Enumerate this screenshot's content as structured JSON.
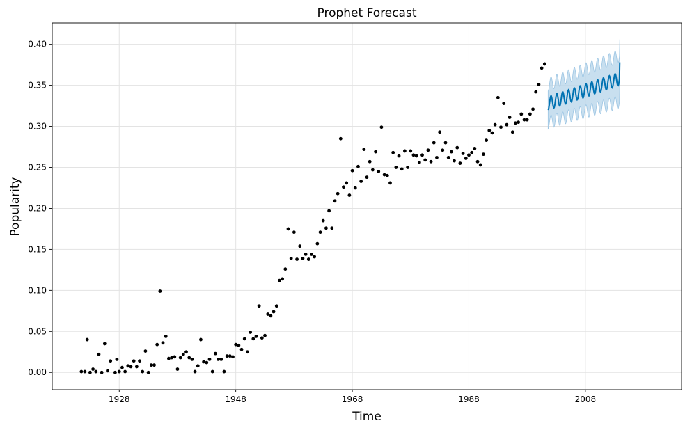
{
  "chart_data": {
    "type": "scatter",
    "title": "Prophet Forecast",
    "xlabel": "Time",
    "ylabel": "Popularity",
    "xlim": [
      1916.5,
      2024.5
    ],
    "ylim": [
      -0.021,
      0.426
    ],
    "x_ticks": [
      1928,
      1948,
      1968,
      1988,
      2008
    ],
    "y_ticks": [
      0.0,
      0.05,
      0.1,
      0.15,
      0.2,
      0.25,
      0.3,
      0.35,
      0.4
    ],
    "y_tick_labels": [
      "0.00",
      "0.05",
      "0.10",
      "0.15",
      "0.20",
      "0.25",
      "0.30",
      "0.35",
      "0.40"
    ],
    "grid": true,
    "colors": {
      "points": "#000000",
      "forecast_line": "#0072B2",
      "uncertainty_band": "#b6d4ea",
      "band_edge": "#9cc5e3"
    },
    "series": [
      {
        "kind": "observed",
        "points": [
          [
            1921.5,
            0.001
          ],
          [
            1922.1,
            0.001
          ],
          [
            1922.5,
            0.04
          ],
          [
            1923.0,
            0.0
          ],
          [
            1923.5,
            0.004
          ],
          [
            1924.0,
            0.001
          ],
          [
            1924.5,
            0.022
          ],
          [
            1925.0,
            0.0
          ],
          [
            1925.5,
            0.035
          ],
          [
            1926.0,
            0.002
          ],
          [
            1926.5,
            0.014
          ],
          [
            1927.3,
            0.0
          ],
          [
            1927.6,
            0.016
          ],
          [
            1928.0,
            0.001
          ],
          [
            1928.5,
            0.006
          ],
          [
            1929.0,
            0.001
          ],
          [
            1929.5,
            0.008
          ],
          [
            1930.0,
            0.007
          ],
          [
            1930.5,
            0.014
          ],
          [
            1931.0,
            0.007
          ],
          [
            1931.5,
            0.014
          ],
          [
            1932.0,
            0.001
          ],
          [
            1932.5,
            0.026
          ],
          [
            1933.0,
            0.0
          ],
          [
            1933.5,
            0.009
          ],
          [
            1934.0,
            0.009
          ],
          [
            1934.5,
            0.034
          ],
          [
            1935.0,
            0.099
          ],
          [
            1935.5,
            0.036
          ],
          [
            1936.0,
            0.044
          ],
          [
            1936.5,
            0.017
          ],
          [
            1937.0,
            0.018
          ],
          [
            1937.5,
            0.019
          ],
          [
            1938.0,
            0.004
          ],
          [
            1938.5,
            0.018
          ],
          [
            1939.0,
            0.022
          ],
          [
            1939.5,
            0.025
          ],
          [
            1940.0,
            0.018
          ],
          [
            1940.5,
            0.016
          ],
          [
            1941.0,
            0.001
          ],
          [
            1941.5,
            0.008
          ],
          [
            1942.0,
            0.04
          ],
          [
            1942.5,
            0.013
          ],
          [
            1943.0,
            0.012
          ],
          [
            1943.5,
            0.016
          ],
          [
            1944.0,
            0.001
          ],
          [
            1944.5,
            0.023
          ],
          [
            1945.0,
            0.016
          ],
          [
            1945.5,
            0.016
          ],
          [
            1946.0,
            0.001
          ],
          [
            1946.5,
            0.02
          ],
          [
            1947.0,
            0.02
          ],
          [
            1947.5,
            0.019
          ],
          [
            1948.0,
            0.034
          ],
          [
            1948.5,
            0.033
          ],
          [
            1949.0,
            0.028
          ],
          [
            1949.5,
            0.041
          ],
          [
            1950.0,
            0.025
          ],
          [
            1950.5,
            0.049
          ],
          [
            1951.0,
            0.041
          ],
          [
            1951.5,
            0.044
          ],
          [
            1952.0,
            0.081
          ],
          [
            1952.5,
            0.042
          ],
          [
            1953.0,
            0.045
          ],
          [
            1953.5,
            0.071
          ],
          [
            1954.0,
            0.069
          ],
          [
            1954.5,
            0.074
          ],
          [
            1955.0,
            0.081
          ],
          [
            1955.5,
            0.112
          ],
          [
            1956.0,
            0.114
          ],
          [
            1956.5,
            0.126
          ],
          [
            1957.0,
            0.175
          ],
          [
            1957.5,
            0.139
          ],
          [
            1958.0,
            0.171
          ],
          [
            1958.5,
            0.138
          ],
          [
            1959.0,
            0.154
          ],
          [
            1959.5,
            0.139
          ],
          [
            1960.0,
            0.144
          ],
          [
            1960.5,
            0.138
          ],
          [
            1961.0,
            0.144
          ],
          [
            1961.5,
            0.141
          ],
          [
            1962.0,
            0.157
          ],
          [
            1962.5,
            0.171
          ],
          [
            1963.0,
            0.185
          ],
          [
            1963.5,
            0.176
          ],
          [
            1964.0,
            0.197
          ],
          [
            1964.5,
            0.176
          ],
          [
            1965.0,
            0.209
          ],
          [
            1965.5,
            0.218
          ],
          [
            1966.0,
            0.285
          ],
          [
            1966.5,
            0.226
          ],
          [
            1967.0,
            0.231
          ],
          [
            1967.5,
            0.216
          ],
          [
            1968.0,
            0.246
          ],
          [
            1968.5,
            0.225
          ],
          [
            1969.0,
            0.251
          ],
          [
            1969.5,
            0.233
          ],
          [
            1970.0,
            0.272
          ],
          [
            1970.5,
            0.238
          ],
          [
            1971.0,
            0.257
          ],
          [
            1971.5,
            0.247
          ],
          [
            1972.0,
            0.269
          ],
          [
            1972.5,
            0.245
          ],
          [
            1973.0,
            0.299
          ],
          [
            1973.5,
            0.241
          ],
          [
            1974.0,
            0.24
          ],
          [
            1974.5,
            0.231
          ],
          [
            1975.0,
            0.268
          ],
          [
            1975.5,
            0.25
          ],
          [
            1976.0,
            0.264
          ],
          [
            1976.5,
            0.248
          ],
          [
            1977.0,
            0.27
          ],
          [
            1977.5,
            0.25
          ],
          [
            1978.0,
            0.27
          ],
          [
            1978.5,
            0.265
          ],
          [
            1979.0,
            0.264
          ],
          [
            1979.5,
            0.256
          ],
          [
            1980.0,
            0.265
          ],
          [
            1980.5,
            0.259
          ],
          [
            1981.0,
            0.271
          ],
          [
            1981.5,
            0.257
          ],
          [
            1982.0,
            0.28
          ],
          [
            1982.5,
            0.262
          ],
          [
            1983.0,
            0.293
          ],
          [
            1983.5,
            0.271
          ],
          [
            1984.0,
            0.28
          ],
          [
            1984.5,
            0.262
          ],
          [
            1985.0,
            0.269
          ],
          [
            1985.5,
            0.258
          ],
          [
            1986.0,
            0.274
          ],
          [
            1986.5,
            0.255
          ],
          [
            1987.0,
            0.267
          ],
          [
            1987.5,
            0.261
          ],
          [
            1988.0,
            0.265
          ],
          [
            1988.5,
            0.268
          ],
          [
            1989.0,
            0.273
          ],
          [
            1989.5,
            0.257
          ],
          [
            1990.0,
            0.253
          ],
          [
            1990.5,
            0.266
          ],
          [
            1991.0,
            0.283
          ],
          [
            1991.5,
            0.295
          ],
          [
            1992.0,
            0.292
          ],
          [
            1992.5,
            0.302
          ],
          [
            1993.0,
            0.335
          ],
          [
            1993.5,
            0.299
          ],
          [
            1994.0,
            0.328
          ],
          [
            1994.5,
            0.302
          ],
          [
            1995.0,
            0.311
          ],
          [
            1995.5,
            0.293
          ],
          [
            1996.0,
            0.304
          ],
          [
            1996.5,
            0.305
          ],
          [
            1997.0,
            0.315
          ],
          [
            1997.5,
            0.308
          ],
          [
            1998.0,
            0.308
          ],
          [
            1998.5,
            0.315
          ],
          [
            1999.0,
            0.321
          ],
          [
            1999.5,
            0.342
          ],
          [
            2000.0,
            0.351
          ],
          [
            2000.5,
            0.371
          ],
          [
            2001.0,
            0.376
          ]
        ]
      },
      {
        "kind": "forecast",
        "x_start": 2001.6,
        "x_end": 2013.9,
        "trend_start": 0.328,
        "trend_end": 0.358,
        "seasonal_amplitude": 0.008,
        "seasonal_period": 1.0,
        "end_value": 0.378,
        "band_halfwidth_start": 0.023,
        "band_halfwidth_end": 0.028
      }
    ]
  }
}
